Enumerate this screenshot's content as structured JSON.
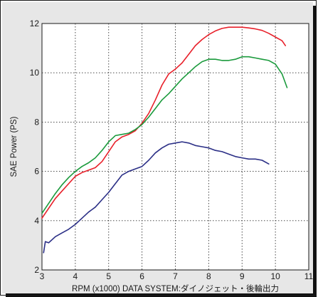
{
  "chart_data": {
    "type": "line",
    "title": "",
    "xlabel": "RPM (x1000) DATA SYSTEM:ダイノジェット・後輪出力",
    "ylabel": "SAE Power (PS)",
    "xlim": [
      3,
      11
    ],
    "ylim": [
      2,
      12
    ],
    "xticks": [
      3,
      4,
      5,
      6,
      7,
      8,
      9,
      10,
      11
    ],
    "yticks": [
      2,
      4,
      6,
      8,
      10,
      12
    ],
    "grid": true,
    "grid_style": "dotted",
    "legend": "none",
    "series": [
      {
        "color": "#e8202a",
        "x": [
          3.0,
          3.2,
          3.4,
          3.6,
          3.8,
          4.0,
          4.2,
          4.4,
          4.6,
          4.8,
          5.0,
          5.2,
          5.4,
          5.6,
          5.8,
          6.0,
          6.2,
          6.4,
          6.6,
          6.8,
          7.0,
          7.2,
          7.4,
          7.6,
          7.8,
          8.0,
          8.2,
          8.4,
          8.6,
          8.8,
          9.0,
          9.2,
          9.4,
          9.6,
          9.8,
          10.0,
          10.2,
          10.3
        ],
        "y": [
          4.1,
          4.5,
          4.9,
          5.2,
          5.5,
          5.8,
          5.95,
          6.05,
          6.15,
          6.4,
          6.8,
          7.2,
          7.4,
          7.5,
          7.65,
          7.95,
          8.35,
          8.9,
          9.5,
          9.95,
          10.15,
          10.4,
          10.75,
          11.1,
          11.35,
          11.55,
          11.7,
          11.8,
          11.85,
          11.85,
          11.85,
          11.82,
          11.78,
          11.72,
          11.6,
          11.45,
          11.3,
          11.1
        ]
      },
      {
        "color": "#1a9a3c",
        "x": [
          3.0,
          3.2,
          3.4,
          3.6,
          3.8,
          4.0,
          4.2,
          4.4,
          4.6,
          4.8,
          5.0,
          5.2,
          5.4,
          5.6,
          5.8,
          6.0,
          6.2,
          6.4,
          6.6,
          6.8,
          7.0,
          7.2,
          7.4,
          7.6,
          7.8,
          8.0,
          8.2,
          8.4,
          8.6,
          8.8,
          9.0,
          9.2,
          9.4,
          9.6,
          9.8,
          10.0,
          10.2,
          10.35
        ],
        "y": [
          4.3,
          4.7,
          5.1,
          5.45,
          5.75,
          6.0,
          6.2,
          6.35,
          6.55,
          6.85,
          7.2,
          7.45,
          7.5,
          7.55,
          7.7,
          7.9,
          8.2,
          8.55,
          8.9,
          9.15,
          9.45,
          9.75,
          10.0,
          10.25,
          10.45,
          10.55,
          10.55,
          10.5,
          10.5,
          10.55,
          10.65,
          10.65,
          10.6,
          10.55,
          10.5,
          10.35,
          9.95,
          9.4
        ]
      },
      {
        "color": "#2b2f86",
        "x": [
          3.05,
          3.1,
          3.2,
          3.4,
          3.6,
          3.8,
          4.0,
          4.2,
          4.4,
          4.6,
          4.8,
          5.0,
          5.2,
          5.4,
          5.6,
          5.8,
          6.0,
          6.2,
          6.4,
          6.6,
          6.8,
          7.0,
          7.2,
          7.4,
          7.6,
          7.8,
          8.0,
          8.2,
          8.4,
          8.6,
          8.8,
          9.0,
          9.2,
          9.4,
          9.6,
          9.8
        ],
        "y": [
          2.7,
          3.15,
          3.1,
          3.35,
          3.5,
          3.65,
          3.85,
          4.1,
          4.35,
          4.55,
          4.85,
          5.15,
          5.5,
          5.85,
          6.0,
          6.1,
          6.2,
          6.45,
          6.75,
          6.95,
          7.1,
          7.15,
          7.2,
          7.15,
          7.05,
          7.0,
          6.95,
          6.85,
          6.8,
          6.7,
          6.6,
          6.55,
          6.5,
          6.5,
          6.45,
          6.3
        ]
      }
    ]
  }
}
